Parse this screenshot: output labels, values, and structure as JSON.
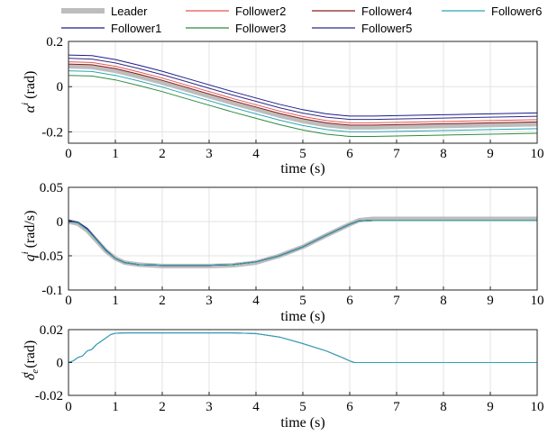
{
  "legend": [
    {
      "name": "Leader",
      "color": "#bdbdbd"
    },
    {
      "name": "Follower1",
      "color": "#1c1c8c"
    },
    {
      "name": "Follower2",
      "color": "#e8554e"
    },
    {
      "name": "Follower3",
      "color": "#2e8b3e"
    },
    {
      "name": "Follower4",
      "color": "#8b1c1c"
    },
    {
      "name": "Follower5",
      "color": "#2b2b8a"
    },
    {
      "name": "Follower6",
      "color": "#2aa5b5"
    }
  ],
  "chart_data": [
    {
      "type": "line",
      "xlabel": "time (s)",
      "ylabel_symbol": "α",
      "ylabel_superscript": "i",
      "ylabel_unit": "(rad)",
      "xlim": [
        0,
        10
      ],
      "ylim": [
        -0.25,
        0.2
      ],
      "xticks": [
        0,
        1,
        2,
        3,
        4,
        5,
        6,
        7,
        8,
        9,
        10
      ],
      "xtick_labels": [
        "0",
        "1",
        "2",
        "3",
        "4",
        "5",
        "6",
        "7",
        "8",
        "9",
        "10"
      ],
      "yticks": [
        -0.2,
        0,
        0.2
      ],
      "ytick_labels": [
        "-0.2",
        "0",
        "0.2"
      ],
      "grid": true,
      "x": [
        0,
        0.5,
        1,
        1.5,
        2,
        2.5,
        3,
        3.5,
        4,
        4.5,
        5,
        5.5,
        6,
        6.5,
        7,
        7.5,
        8,
        8.5,
        9,
        9.5,
        10
      ],
      "series": [
        {
          "name": "Leader",
          "values": [
            0.09,
            0.087,
            0.07,
            0.045,
            0.018,
            -0.012,
            -0.042,
            -0.072,
            -0.1,
            -0.128,
            -0.152,
            -0.17,
            -0.18,
            -0.18,
            -0.178,
            -0.176,
            -0.174,
            -0.172,
            -0.17,
            -0.168,
            -0.166
          ]
        },
        {
          "name": "Follower1",
          "values": [
            0.14,
            0.137,
            0.12,
            0.095,
            0.068,
            0.038,
            0.008,
            -0.022,
            -0.05,
            -0.078,
            -0.102,
            -0.12,
            -0.13,
            -0.13,
            -0.128,
            -0.126,
            -0.124,
            -0.122,
            -0.12,
            -0.118,
            -0.116
          ]
        },
        {
          "name": "Follower2",
          "values": [
            0.11,
            0.107,
            0.09,
            0.065,
            0.038,
            0.008,
            -0.022,
            -0.052,
            -0.08,
            -0.108,
            -0.132,
            -0.15,
            -0.16,
            -0.16,
            -0.158,
            -0.156,
            -0.154,
            -0.152,
            -0.15,
            -0.148,
            -0.146
          ]
        },
        {
          "name": "Follower3",
          "values": [
            0.05,
            0.047,
            0.03,
            0.005,
            -0.022,
            -0.052,
            -0.082,
            -0.112,
            -0.14,
            -0.168,
            -0.192,
            -0.21,
            -0.22,
            -0.22,
            -0.218,
            -0.216,
            -0.214,
            -0.212,
            -0.21,
            -0.208,
            -0.206
          ]
        },
        {
          "name": "Follower4",
          "values": [
            0.1,
            0.097,
            0.08,
            0.055,
            0.028,
            -0.002,
            -0.032,
            -0.062,
            -0.09,
            -0.118,
            -0.142,
            -0.16,
            -0.17,
            -0.17,
            -0.168,
            -0.166,
            -0.164,
            -0.162,
            -0.16,
            -0.158,
            -0.156
          ]
        },
        {
          "name": "Follower5",
          "values": [
            0.125,
            0.122,
            0.105,
            0.08,
            0.053,
            0.023,
            -0.007,
            -0.037,
            -0.065,
            -0.093,
            -0.117,
            -0.135,
            -0.145,
            -0.145,
            -0.143,
            -0.141,
            -0.139,
            -0.137,
            -0.135,
            -0.133,
            -0.131
          ]
        },
        {
          "name": "Follower6",
          "values": [
            0.07,
            0.067,
            0.05,
            0.025,
            -0.002,
            -0.032,
            -0.062,
            -0.092,
            -0.12,
            -0.148,
            -0.172,
            -0.19,
            -0.2,
            -0.2,
            -0.198,
            -0.196,
            -0.194,
            -0.192,
            -0.19,
            -0.188,
            -0.186
          ]
        }
      ]
    },
    {
      "type": "line",
      "xlabel": "time (s)",
      "ylabel_symbol": "q",
      "ylabel_superscript": "i",
      "ylabel_unit": "(rad/s)",
      "xlim": [
        0,
        10
      ],
      "ylim": [
        -0.1,
        0.05
      ],
      "xticks": [
        0,
        1,
        2,
        3,
        4,
        5,
        6,
        7,
        8,
        9,
        10
      ],
      "xtick_labels": [
        "0",
        "1",
        "2",
        "3",
        "4",
        "5",
        "6",
        "7",
        "8",
        "9",
        "10"
      ],
      "yticks": [
        -0.1,
        -0.05,
        0,
        0.05
      ],
      "ytick_labels": [
        "-0.1",
        "-0.05",
        "0",
        "0.05"
      ],
      "grid": true,
      "x": [
        0,
        0.2,
        0.4,
        0.6,
        0.8,
        1,
        1.2,
        1.5,
        2,
        2.5,
        3,
        3.5,
        4,
        4.5,
        5,
        5.5,
        6,
        6.2,
        6.5,
        7,
        7.5,
        8,
        8.5,
        9,
        9.5,
        10
      ],
      "series": [
        {
          "name": "Leader",
          "values": [
            0,
            -0.003,
            -0.013,
            -0.028,
            -0.043,
            -0.054,
            -0.06,
            -0.063,
            -0.065,
            -0.065,
            -0.065,
            -0.064,
            -0.06,
            -0.05,
            -0.037,
            -0.02,
            -0.004,
            0.002,
            0.004,
            0.004,
            0.004,
            0.004,
            0.004,
            0.004,
            0.004,
            0.004
          ]
        },
        {
          "name": "Follower1",
          "values": [
            0.002,
            -0.001,
            -0.01,
            -0.026,
            -0.042,
            -0.054,
            -0.06,
            -0.063,
            -0.064,
            -0.064,
            -0.064,
            -0.063,
            -0.059,
            -0.05,
            -0.037,
            -0.02,
            -0.004,
            0.001,
            0.002,
            0.002,
            0.002,
            0.002,
            0.002,
            0.002,
            0.002,
            0.002
          ]
        },
        {
          "name": "Follower2",
          "values": [
            0.001,
            -0.002,
            -0.011,
            -0.027,
            -0.042,
            -0.054,
            -0.06,
            -0.063,
            -0.064,
            -0.064,
            -0.064,
            -0.063,
            -0.059,
            -0.05,
            -0.037,
            -0.02,
            -0.004,
            0.001,
            0.002,
            0.002,
            0.002,
            0.002,
            0.002,
            0.002,
            0.002,
            0.002
          ]
        },
        {
          "name": "Follower3",
          "values": [
            0.0,
            -0.002,
            -0.012,
            -0.027,
            -0.043,
            -0.054,
            -0.06,
            -0.063,
            -0.064,
            -0.064,
            -0.064,
            -0.063,
            -0.059,
            -0.05,
            -0.037,
            -0.02,
            -0.004,
            0.001,
            0.002,
            0.002,
            0.002,
            0.002,
            0.002,
            0.002,
            0.002,
            0.002
          ]
        },
        {
          "name": "Follower4",
          "values": [
            0.001,
            -0.002,
            -0.011,
            -0.027,
            -0.042,
            -0.054,
            -0.06,
            -0.063,
            -0.064,
            -0.064,
            -0.064,
            -0.063,
            -0.059,
            -0.05,
            -0.037,
            -0.02,
            -0.004,
            0.001,
            0.002,
            0.002,
            0.002,
            0.002,
            0.002,
            0.002,
            0.002,
            0.002
          ]
        },
        {
          "name": "Follower5",
          "values": [
            0.002,
            -0.001,
            -0.01,
            -0.026,
            -0.042,
            -0.054,
            -0.06,
            -0.063,
            -0.064,
            -0.064,
            -0.064,
            -0.063,
            -0.059,
            -0.05,
            -0.037,
            -0.02,
            -0.004,
            0.001,
            0.002,
            0.002,
            0.002,
            0.002,
            0.002,
            0.002,
            0.002,
            0.002
          ]
        },
        {
          "name": "Follower6",
          "values": [
            0.0,
            -0.002,
            -0.012,
            -0.027,
            -0.043,
            -0.054,
            -0.06,
            -0.063,
            -0.064,
            -0.064,
            -0.064,
            -0.063,
            -0.059,
            -0.05,
            -0.037,
            -0.02,
            -0.004,
            0.001,
            0.002,
            0.002,
            0.002,
            0.002,
            0.002,
            0.002,
            0.002,
            0.002
          ]
        }
      ]
    },
    {
      "type": "line",
      "xlabel": "time (s)",
      "ylabel_symbol": "δ",
      "ylabel_superscript": "i",
      "ylabel_subscript": "e",
      "ylabel_unit": "(rad)",
      "xlim": [
        0,
        10
      ],
      "ylim": [
        -0.02,
        0.02
      ],
      "xticks": [
        0,
        1,
        2,
        3,
        4,
        5,
        6,
        7,
        8,
        9,
        10
      ],
      "xtick_labels": [
        "0",
        "1",
        "2",
        "3",
        "4",
        "5",
        "6",
        "7",
        "8",
        "9",
        "10"
      ],
      "yticks": [
        -0.02,
        0,
        0.02
      ],
      "ytick_labels": [
        "-0.02",
        "0",
        "0.02"
      ],
      "grid": true,
      "x": [
        0,
        0.1,
        0.2,
        0.3,
        0.4,
        0.5,
        0.6,
        0.7,
        0.8,
        0.9,
        1,
        1.2,
        1.5,
        2,
        2.5,
        3,
        3.5,
        4,
        4.5,
        5,
        5.5,
        5.8,
        6,
        6.1,
        6.3,
        6.6,
        7,
        8,
        9,
        10
      ],
      "series": [
        {
          "name": "Follower1",
          "values": [
            0,
            0.001,
            0.003,
            0.004,
            0.007,
            0.008,
            0.011,
            0.013,
            0.015,
            0.017,
            0.0178,
            0.018,
            0.018,
            0.018,
            0.018,
            0.018,
            0.018,
            0.0176,
            0.0155,
            0.0115,
            0.007,
            0.0035,
            0.001,
            0.0,
            0.0,
            0.0,
            0.0,
            0.0,
            0.0,
            0.0
          ]
        },
        {
          "name": "Follower6",
          "values": [
            0,
            0.001,
            0.003,
            0.004,
            0.007,
            0.008,
            0.011,
            0.013,
            0.015,
            0.017,
            0.0178,
            0.018,
            0.018,
            0.018,
            0.018,
            0.018,
            0.018,
            0.0176,
            0.0155,
            0.0115,
            0.007,
            0.0035,
            0.001,
            0.0,
            0.0,
            0.0,
            0.0,
            0.0,
            0.0,
            0.0
          ]
        }
      ]
    }
  ]
}
